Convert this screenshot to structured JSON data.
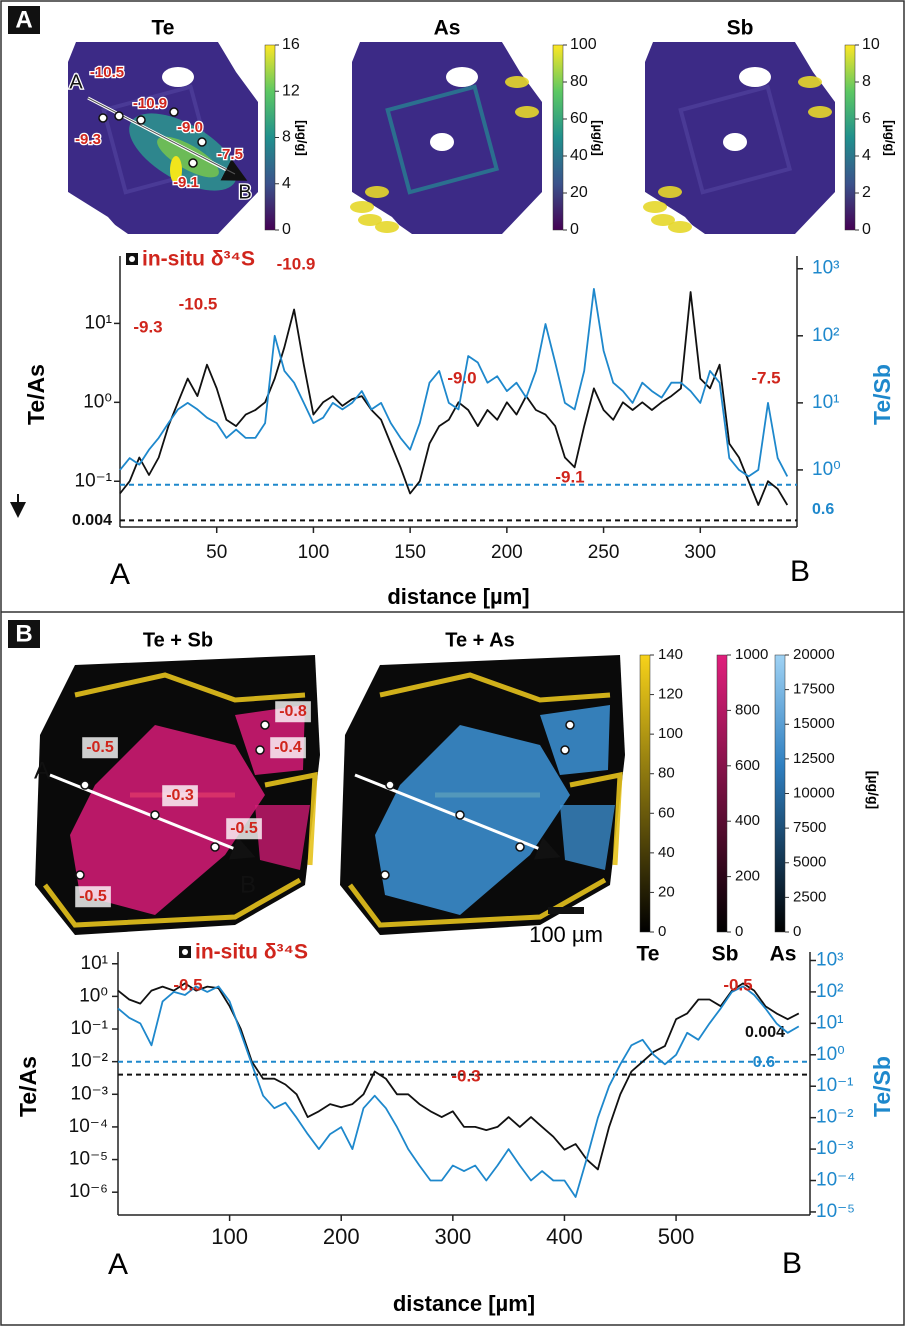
{
  "panels": [
    {
      "label": "A",
      "maps": [
        {
          "title": "Te",
          "colorbar": {
            "lim": [
              0,
              16
            ],
            "ticks": [
              0,
              4,
              8,
              12,
              16
            ],
            "unit": "[µg/g]"
          }
        },
        {
          "title": "As",
          "colorbar": {
            "lim": [
              0,
              100
            ],
            "ticks": [
              0,
              20,
              40,
              60,
              80,
              100
            ],
            "unit": "[µg/g]"
          }
        },
        {
          "title": "Sb",
          "colorbar": {
            "lim": [
              0,
              10
            ],
            "ticks": [
              0,
              2,
              4,
              6,
              8,
              10
            ],
            "unit": "[µg/g]"
          }
        }
      ],
      "map_labels": [
        "A",
        "-10.5",
        "-10.9",
        "-9.3",
        "-9.0",
        "-7.5",
        "-9.1",
        "B"
      ],
      "legend": "in-situ δ³⁴S"
    },
    {
      "label": "B",
      "maps": [
        {
          "title": "Te + Sb"
        },
        {
          "title": "Te + As"
        }
      ],
      "colorbars": [
        {
          "name": "Te",
          "lim": [
            0,
            140
          ],
          "ticks": [
            0,
            20,
            40,
            60,
            80,
            100,
            120,
            140
          ]
        },
        {
          "name": "Sb",
          "lim": [
            0,
            1000
          ],
          "ticks": [
            0,
            200,
            400,
            600,
            800,
            1000
          ]
        },
        {
          "name": "As",
          "lim": [
            0,
            20000
          ],
          "ticks": [
            0,
            2500,
            5000,
            7500,
            10000,
            12500,
            15000,
            17500,
            20000
          ]
        }
      ],
      "unit": "[µg/g]",
      "scale_bar": "100 µm",
      "map_labels": [
        "-0.8",
        "-0.4",
        "-0.5",
        "-0.3",
        "-0.5",
        "-0.5",
        "A",
        "B"
      ],
      "legend": "in-situ δ³⁴S"
    }
  ],
  "chart_data": [
    {
      "type": "line",
      "log_y": true,
      "xlabel": "distance [µm]",
      "ylabel": "Te/As",
      "y2label": "Te/Sb",
      "start_label": "A",
      "end_label": "B",
      "xlim": [
        0,
        350
      ],
      "xticks": [
        50,
        100,
        150,
        200,
        250,
        300
      ],
      "ylim": [
        0.05,
        60
      ],
      "yticks": [
        {
          "value": 0.1,
          "label": "10⁻¹"
        },
        {
          "value": 1,
          "label": "10⁰"
        },
        {
          "value": 10,
          "label": "10¹"
        }
      ],
      "y2lim": [
        0.3,
        1260
      ],
      "y2ticks": [
        {
          "value": 1,
          "label": "10⁰"
        },
        {
          "value": 10,
          "label": "10¹"
        },
        {
          "value": 100,
          "label": "10²"
        },
        {
          "value": 1000,
          "label": "10³"
        }
      ],
      "x": [
        0,
        5,
        10,
        15,
        20,
        25,
        30,
        35,
        40,
        45,
        50,
        55,
        60,
        65,
        70,
        75,
        80,
        85,
        90,
        95,
        100,
        105,
        110,
        115,
        120,
        125,
        130,
        135,
        140,
        145,
        150,
        155,
        160,
        165,
        170,
        175,
        180,
        185,
        190,
        195,
        200,
        205,
        210,
        215,
        220,
        225,
        230,
        235,
        240,
        245,
        250,
        255,
        260,
        265,
        270,
        275,
        280,
        285,
        290,
        295,
        300,
        305,
        310,
        315,
        320,
        325,
        330,
        335,
        340,
        345
      ],
      "series": [
        {
          "color": "#111111",
          "axis": "y",
          "values": [
            0.07,
            0.1,
            0.2,
            0.12,
            0.2,
            0.5,
            1.0,
            2.0,
            1.2,
            3.0,
            1.5,
            0.6,
            0.5,
            0.7,
            0.8,
            1.0,
            2.0,
            5,
            15,
            3,
            0.7,
            1.0,
            1.2,
            0.9,
            1.1,
            1.2,
            0.8,
            0.6,
            0.3,
            0.15,
            0.07,
            0.1,
            0.3,
            0.5,
            0.6,
            1.0,
            0.8,
            0.5,
            0.8,
            0.6,
            1.0,
            0.7,
            1.2,
            0.8,
            0.7,
            0.5,
            0.2,
            0.15,
            0.5,
            1.5,
            0.8,
            0.6,
            1.0,
            0.8,
            1.0,
            0.8,
            1.0,
            1.2,
            1.5,
            25,
            2,
            1.5,
            3,
            0.3,
            0.2,
            0.1,
            0.05,
            0.1,
            0.08,
            0.05
          ]
        },
        {
          "color": "#1e88cc",
          "axis": "y2",
          "values": [
            1.0,
            1.5,
            1.2,
            2,
            3,
            5,
            8,
            10,
            8,
            6,
            5,
            3,
            4,
            3,
            3,
            5,
            100,
            30,
            20,
            10,
            5,
            6,
            10,
            8,
            10,
            15,
            8,
            10,
            5,
            3,
            2,
            5,
            20,
            30,
            10,
            8,
            50,
            40,
            20,
            25,
            15,
            20,
            12,
            30,
            150,
            40,
            10,
            8,
            30,
            500,
            60,
            20,
            15,
            10,
            20,
            15,
            12,
            20,
            20,
            15,
            10,
            30,
            20,
            1.5,
            1,
            0.8,
            1.0,
            10,
            1.5,
            0.8
          ]
        }
      ],
      "thresholds": [
        {
          "value": 0.004,
          "axis": "y",
          "color": "#111111"
        },
        {
          "value": 0.6,
          "axis": "y2",
          "color": "#1e88cc"
        }
      ],
      "annotations": [
        "-9.3",
        "-10.5",
        "-10.9",
        "-9.0",
        "-9.1",
        "-7.5"
      ],
      "annotation_color": "#d0251c"
    },
    {
      "type": "line",
      "log_y": true,
      "xlabel": "distance [µm]",
      "ylabel": "Te/As",
      "y2label": "Te/Sb",
      "start_label": "A",
      "end_label": "B",
      "xlim": [
        0,
        620
      ],
      "xticks": [
        100,
        200,
        300,
        400,
        500
      ],
      "ylim": [
        2e-07,
        15
      ],
      "yticks": [
        {
          "value": 1e-06,
          "label": "10⁻⁶"
        },
        {
          "value": 1e-05,
          "label": "10⁻⁵"
        },
        {
          "value": 0.0001,
          "label": "10⁻⁴"
        },
        {
          "value": 0.001,
          "label": "10⁻³"
        },
        {
          "value": 0.01,
          "label": "10⁻²"
        },
        {
          "value": 0.1,
          "label": "10⁻¹"
        },
        {
          "value": 1,
          "label": "10⁰"
        },
        {
          "value": 10,
          "label": "10¹"
        }
      ],
      "y2lim": [
        8e-06,
        1200
      ],
      "y2ticks": [
        {
          "value": 1e-05,
          "label": "10⁻⁵"
        },
        {
          "value": 0.0001,
          "label": "10⁻⁴"
        },
        {
          "value": 0.001,
          "label": "10⁻³"
        },
        {
          "value": 0.01,
          "label": "10⁻²"
        },
        {
          "value": 0.1,
          "label": "10⁻¹"
        },
        {
          "value": 1,
          "label": "10⁰"
        },
        {
          "value": 10,
          "label": "10¹"
        },
        {
          "value": 100,
          "label": "10²"
        },
        {
          "value": 1000,
          "label": "10³"
        }
      ],
      "x": [
        0,
        10,
        20,
        30,
        40,
        50,
        60,
        70,
        80,
        90,
        100,
        110,
        120,
        130,
        140,
        150,
        160,
        170,
        180,
        190,
        200,
        210,
        220,
        230,
        240,
        250,
        260,
        270,
        280,
        290,
        300,
        310,
        320,
        330,
        340,
        350,
        360,
        370,
        380,
        390,
        400,
        410,
        420,
        430,
        440,
        450,
        460,
        470,
        480,
        490,
        500,
        510,
        520,
        530,
        540,
        550,
        560,
        570,
        580,
        590,
        600,
        610
      ],
      "series": [
        {
          "color": "#111111",
          "axis": "y",
          "values": [
            1.5,
            0.8,
            0.6,
            1.5,
            2,
            1.5,
            2.5,
            1.5,
            2,
            1.8,
            0.5,
            0.1,
            0.01,
            0.003,
            0.003,
            0.002,
            0.001,
            0.0002,
            0.0003,
            0.0005,
            0.0004,
            0.0005,
            0.001,
            0.005,
            0.003,
            0.001,
            0.001,
            0.0005,
            0.0003,
            0.0002,
            0.0003,
            0.0001,
            0.0001,
            8e-05,
            0.0001,
            0.0002,
            0.0001,
            0.0002,
            0.0001,
            5e-05,
            2e-05,
            3e-05,
            1e-05,
            5e-06,
            0.0001,
            0.001,
            0.005,
            0.01,
            0.02,
            0.03,
            0.2,
            0.3,
            0.8,
            0.8,
            0.5,
            1.5,
            2.5,
            1.5,
            0.5,
            0.3,
            0.2,
            0.3
          ]
        },
        {
          "color": "#1e88cc",
          "axis": "y2",
          "values": [
            30,
            15,
            10,
            2,
            50,
            100,
            80,
            150,
            100,
            150,
            50,
            5,
            0.5,
            0.05,
            0.02,
            0.03,
            0.01,
            0.003,
            0.001,
            0.003,
            0.005,
            0.001,
            0.02,
            0.05,
            0.02,
            0.005,
            0.001,
            0.0003,
            0.0001,
            0.0001,
            0.0003,
            0.0002,
            0.0003,
            0.0001,
            0.0003,
            0.001,
            0.0003,
            0.0001,
            0.0002,
            0.0001,
            0.0001,
            3e-05,
            0.0005,
            0.01,
            0.1,
            0.5,
            2,
            3,
            1,
            0.5,
            1,
            5,
            3,
            10,
            30,
            100,
            150,
            80,
            30,
            10,
            5,
            8
          ]
        }
      ],
      "thresholds": [
        {
          "value": 0.004,
          "axis": "y",
          "color": "#111111"
        },
        {
          "value": 0.6,
          "axis": "y2",
          "color": "#1e88cc"
        }
      ],
      "annotations": [
        "-0.5",
        "-0.5",
        "-0.3"
      ],
      "annotation_color": "#d0251c"
    }
  ]
}
